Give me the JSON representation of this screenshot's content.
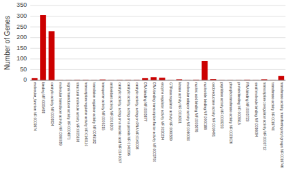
{
  "chart_data": {
    "type": "bar",
    "ylabel": "Number of Genes",
    "categories": [
      "molecular_function MF:0003674",
      "binding MF:0005488",
      "catalytic activity MF:0003824",
      "molecular transducer activity MF:0060089",
      "signal transducer activity MF:0004871",
      "structural molecule activity MF:0005198",
      "transcription regulator activity MF:0140110",
      "translation regulator activity MF:0045182",
      "transporter activity MF:0005215",
      "antioxidant activity MF:0016209",
      "catalytic activity, acting on a nucleic acid MF:0140097",
      "catalytic activity, acting on a protein MF:0140096",
      "catalytic activity, acting on RNA MF:0140098",
      "DNA binding MF:0003677",
      "DNA-binding transcription factor activity MF:0003700",
      "enzyme regulator activity MF:0030234",
      "GTPase regulator activity MF:0060589",
      "kinase activity MF:0016301",
      "molecular adaptor activity MF:0060090",
      "nucleic acid binding MF:0003676",
      "nucleotide binding MF:0000166",
      "oxidoreductase activity MF:0016491",
      "peptidase activity MF:0008233",
      "phosphotransferase activity MF:0023026",
      "protein binding MF:0005515",
      "RNA binding MF:0003723",
      "small molecule binding MF:0036094",
      "transcription coregulator activity MF:0003712",
      "transferase activity MF:0016740",
      "transferase activity, transferring acyl groups MF:0016746"
    ],
    "values": [
      10,
      305,
      230,
      1,
      1,
      2,
      2,
      1,
      4,
      1,
      2,
      2,
      2,
      10,
      15,
      12,
      1,
      5,
      1,
      3,
      90,
      6,
      1,
      1,
      1,
      3,
      1,
      5,
      1,
      20
    ],
    "color": "#cc0000",
    "ylim": [
      0,
      350
    ],
    "yticks": [
      0,
      50,
      100,
      150,
      200,
      250,
      300,
      350
    ],
    "grid": true
  }
}
